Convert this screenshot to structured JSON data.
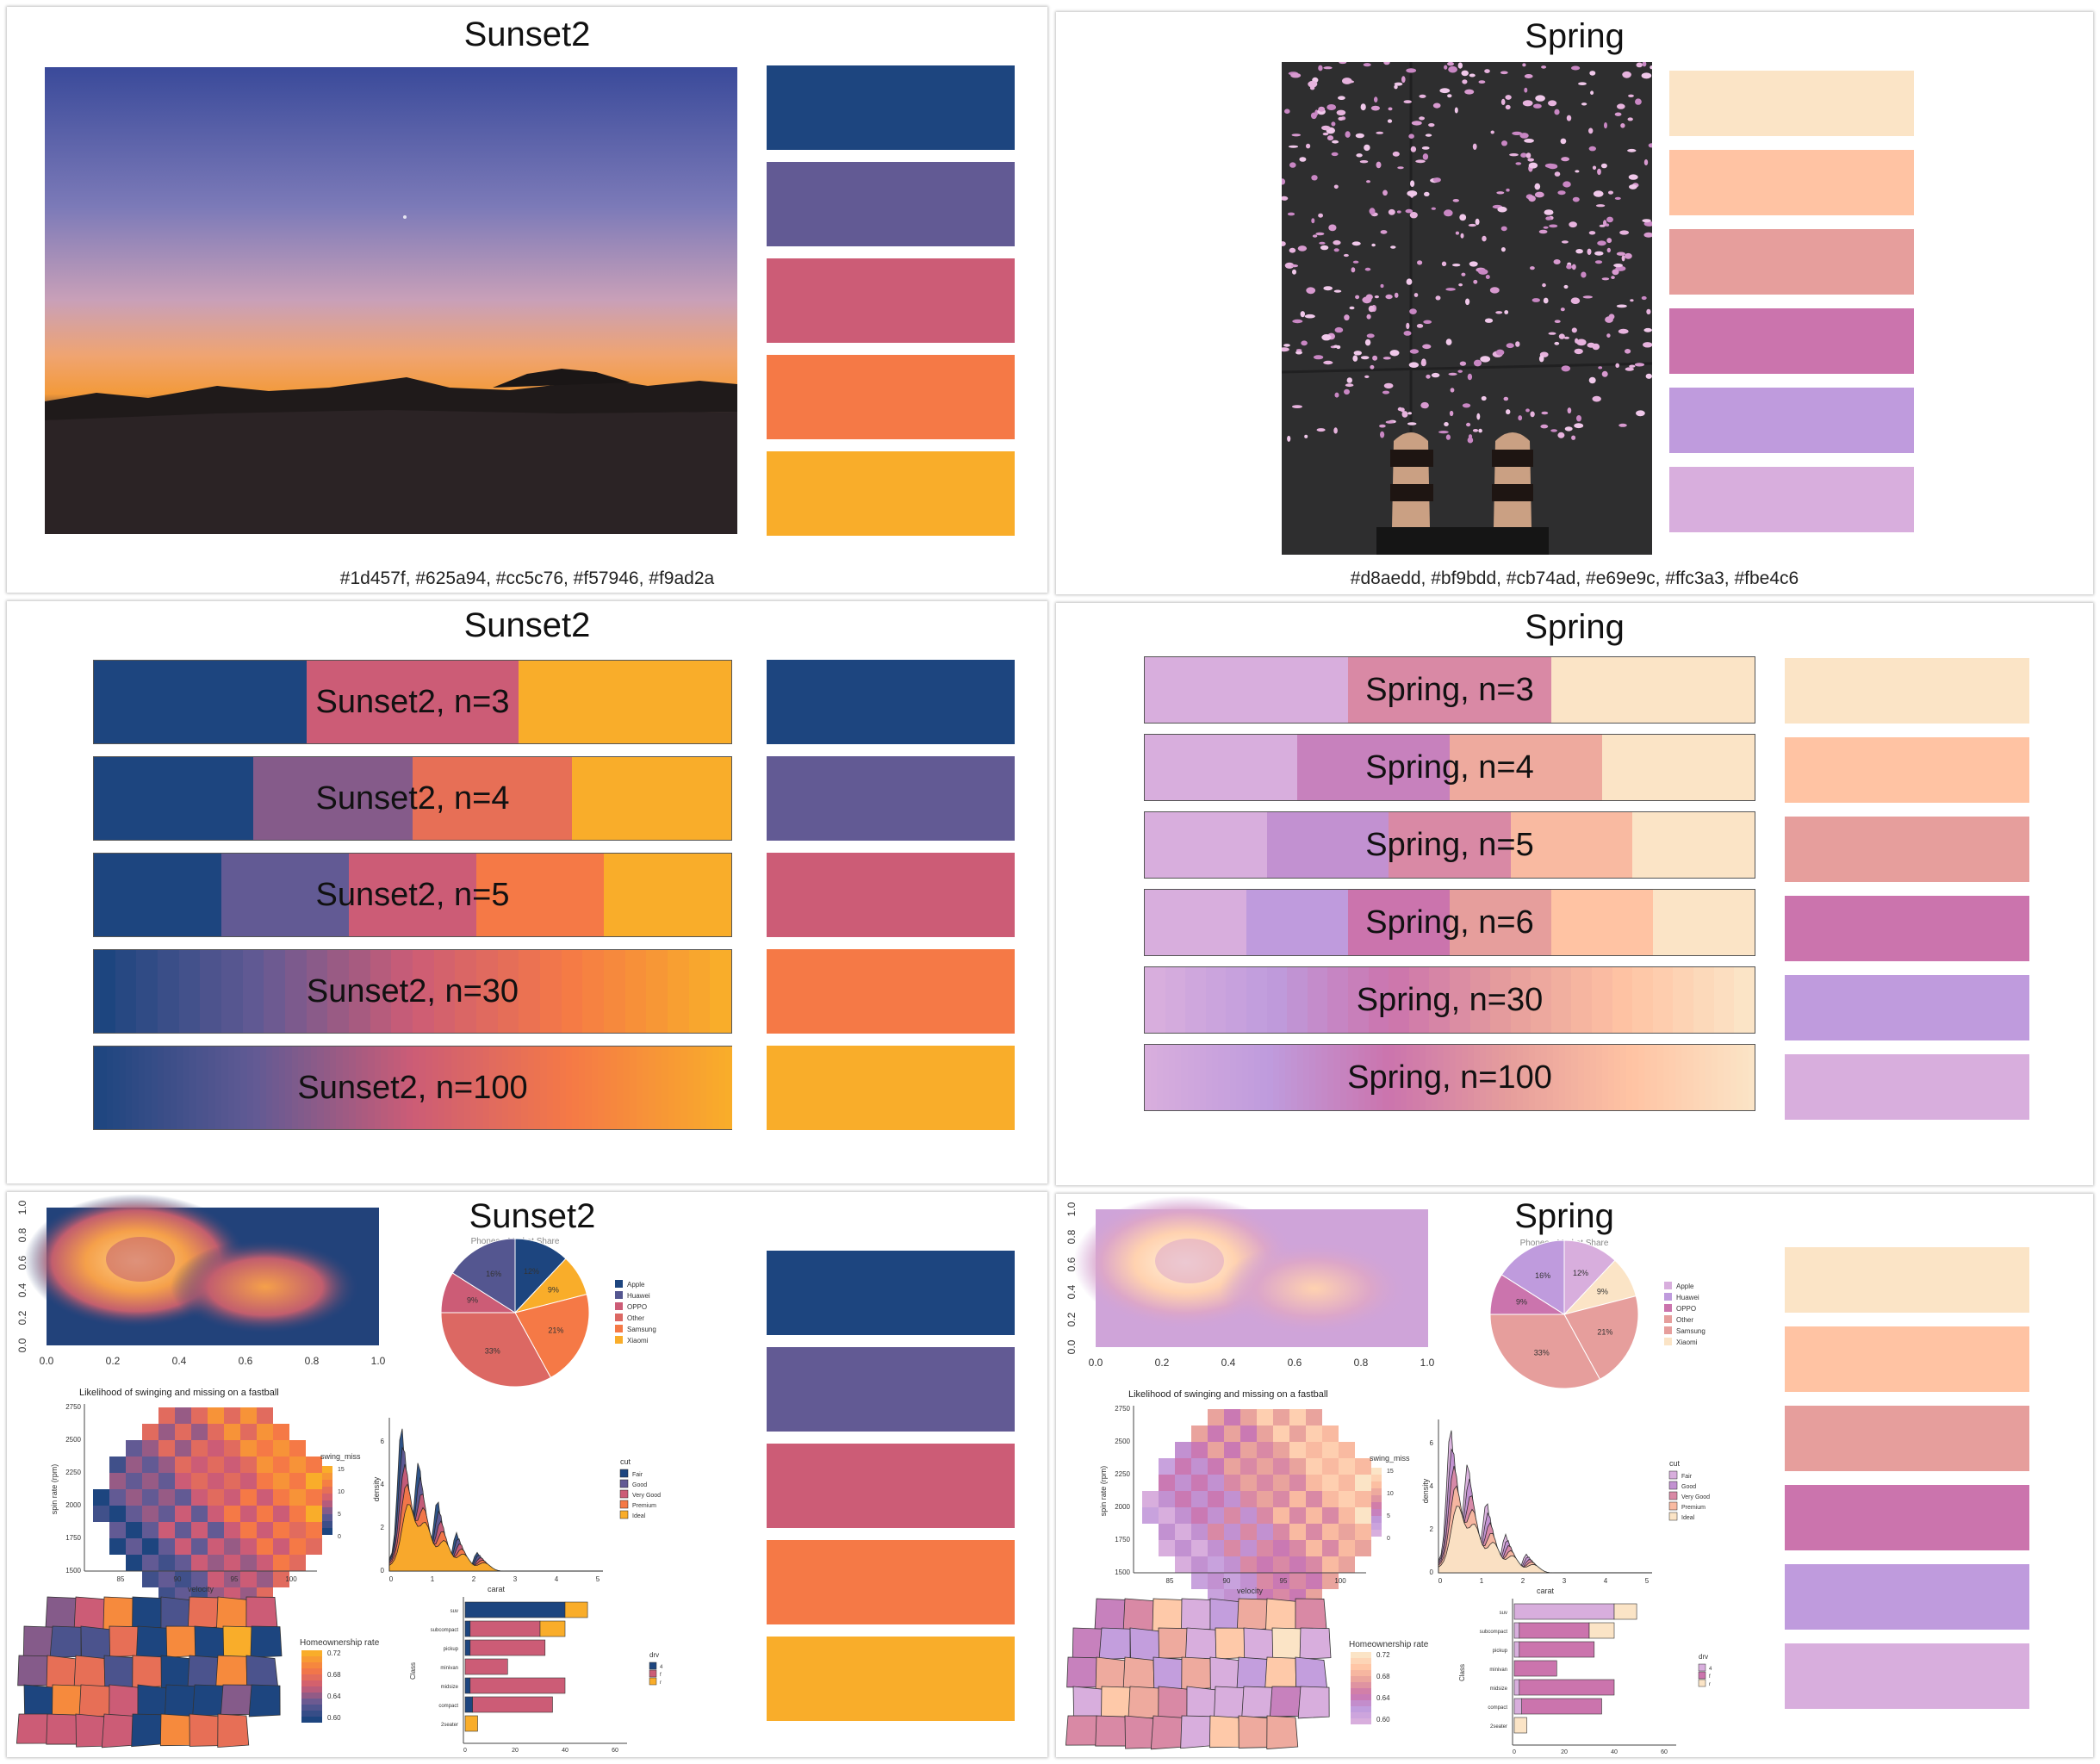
{
  "panels": {
    "sunset_photo": {
      "title": "Sunset2",
      "hex_caption": "#1d457f, #625a94, #cc5c76, #f57946, #f9ad2a",
      "swatches": [
        "#1d457f",
        "#625a94",
        "#cc5c76",
        "#f57946",
        "#f9ad2a"
      ]
    },
    "spring_photo": {
      "title": "Spring",
      "hex_caption": "#d8aedd, #bf9bdd, #cb74ad, #e69e9c, #ffc3a3, #fbe4c6",
      "swatches": [
        "#fbe4c6",
        "#ffc3a3",
        "#e69e9c",
        "#cb74ad",
        "#bf9bdd",
        "#d8aedd"
      ]
    },
    "sunset_bars": {
      "title": "Sunset2",
      "bars": [
        {
          "label": "Sunset2, n=3",
          "n": 3
        },
        {
          "label": "Sunset2, n=4",
          "n": 4
        },
        {
          "label": "Sunset2, n=5",
          "n": 5
        },
        {
          "label": "Sunset2, n=30",
          "n": 30
        },
        {
          "label": "Sunset2, n=100",
          "n": 100
        }
      ]
    },
    "spring_bars": {
      "title": "Spring",
      "bars": [
        {
          "label": "Spring, n=3",
          "n": 3
        },
        {
          "label": "Spring, n=4",
          "n": 4
        },
        {
          "label": "Spring, n=5",
          "n": 5
        },
        {
          "label": "Spring, n=6",
          "n": 6
        },
        {
          "label": "Spring, n=30",
          "n": 30
        },
        {
          "label": "Spring, n=100",
          "n": 100
        }
      ]
    },
    "sunset_viz": {
      "title": "Sunset2"
    },
    "spring_viz": {
      "title": "Spring"
    }
  },
  "viz_text": {
    "density_ticks_x": [
      "0.0",
      "0.2",
      "0.4",
      "0.6",
      "0.8",
      "1.0"
    ],
    "density_ticks_y": [
      "0.0",
      "0.2",
      "0.4",
      "0.6",
      "0.8",
      "1.0"
    ],
    "pie_title": "Phones - Market Share",
    "pie_legend": [
      "Apple",
      "Huawei",
      "OPPO",
      "Other",
      "Samsung",
      "Xiaomi"
    ],
    "pie_values": [
      12,
      16,
      9,
      33,
      21,
      9
    ],
    "pie_labels": [
      "12%",
      "16%",
      "9%",
      "33%",
      "21%",
      "9%"
    ],
    "heat_title": "Likelihood of swinging and missing on a fastball",
    "heat_xlabel": "velocity",
    "heat_ylabel": "spin rate (rpm)",
    "heat_legend_title": "swing_miss",
    "heat_xticks": [
      "85",
      "90",
      "95",
      "100"
    ],
    "heat_yticks": [
      "2750",
      "2500",
      "2250",
      "2000",
      "1750",
      "1500"
    ],
    "heat_legend_ticks": [
      "15",
      "10",
      "5",
      "0"
    ],
    "ridge_xlabel": "carat",
    "ridge_ylabel": "density",
    "ridge_legend_title": "cut",
    "ridge_legend": [
      "Fair",
      "Good",
      "Very Good",
      "Premium",
      "Ideal"
    ],
    "ridge_xticks": [
      "0",
      "1",
      "2",
      "3",
      "4",
      "5"
    ],
    "ridge_yticks": [
      "0",
      "2",
      "4",
      "6"
    ],
    "map_legend_title": "Homeownership rate",
    "map_legend_ticks": [
      "0.72",
      "0.68",
      "0.64",
      "0.60"
    ],
    "hbar_ylabel": "Class",
    "hbar_legend_title": "drv",
    "hbar_legend": [
      "4",
      "f",
      "r"
    ],
    "hbar_categories": [
      "suv",
      "subcompact",
      "pickup",
      "minivan",
      "midsize",
      "compact",
      "2seater"
    ],
    "hbar_xticks": [
      "0",
      "20",
      "40",
      "60"
    ]
  }
}
